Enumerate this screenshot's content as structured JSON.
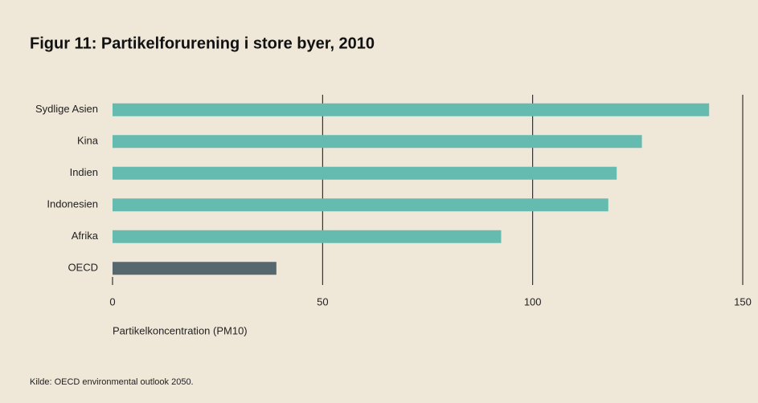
{
  "chart_data": {
    "type": "bar",
    "orientation": "horizontal",
    "title": "Figur 11: Partikelforurening i store byer, 2010",
    "x_label": "Partikelkoncentration (PM10)",
    "source": "Kilde: OECD environmental outlook 2050.",
    "categories": [
      "Sydlige Asien",
      "Kina",
      "Indien",
      "Indonesien",
      "Afrika",
      "OECD"
    ],
    "values": [
      142,
      126,
      120,
      118,
      92.5,
      39
    ],
    "colors": [
      "#66bbb0",
      "#66bbb0",
      "#66bbb0",
      "#66bbb0",
      "#66bbb0",
      "#56676e"
    ],
    "xlim": [
      0,
      150
    ],
    "xticks": [
      0,
      50,
      100,
      150
    ],
    "grid": true
  }
}
